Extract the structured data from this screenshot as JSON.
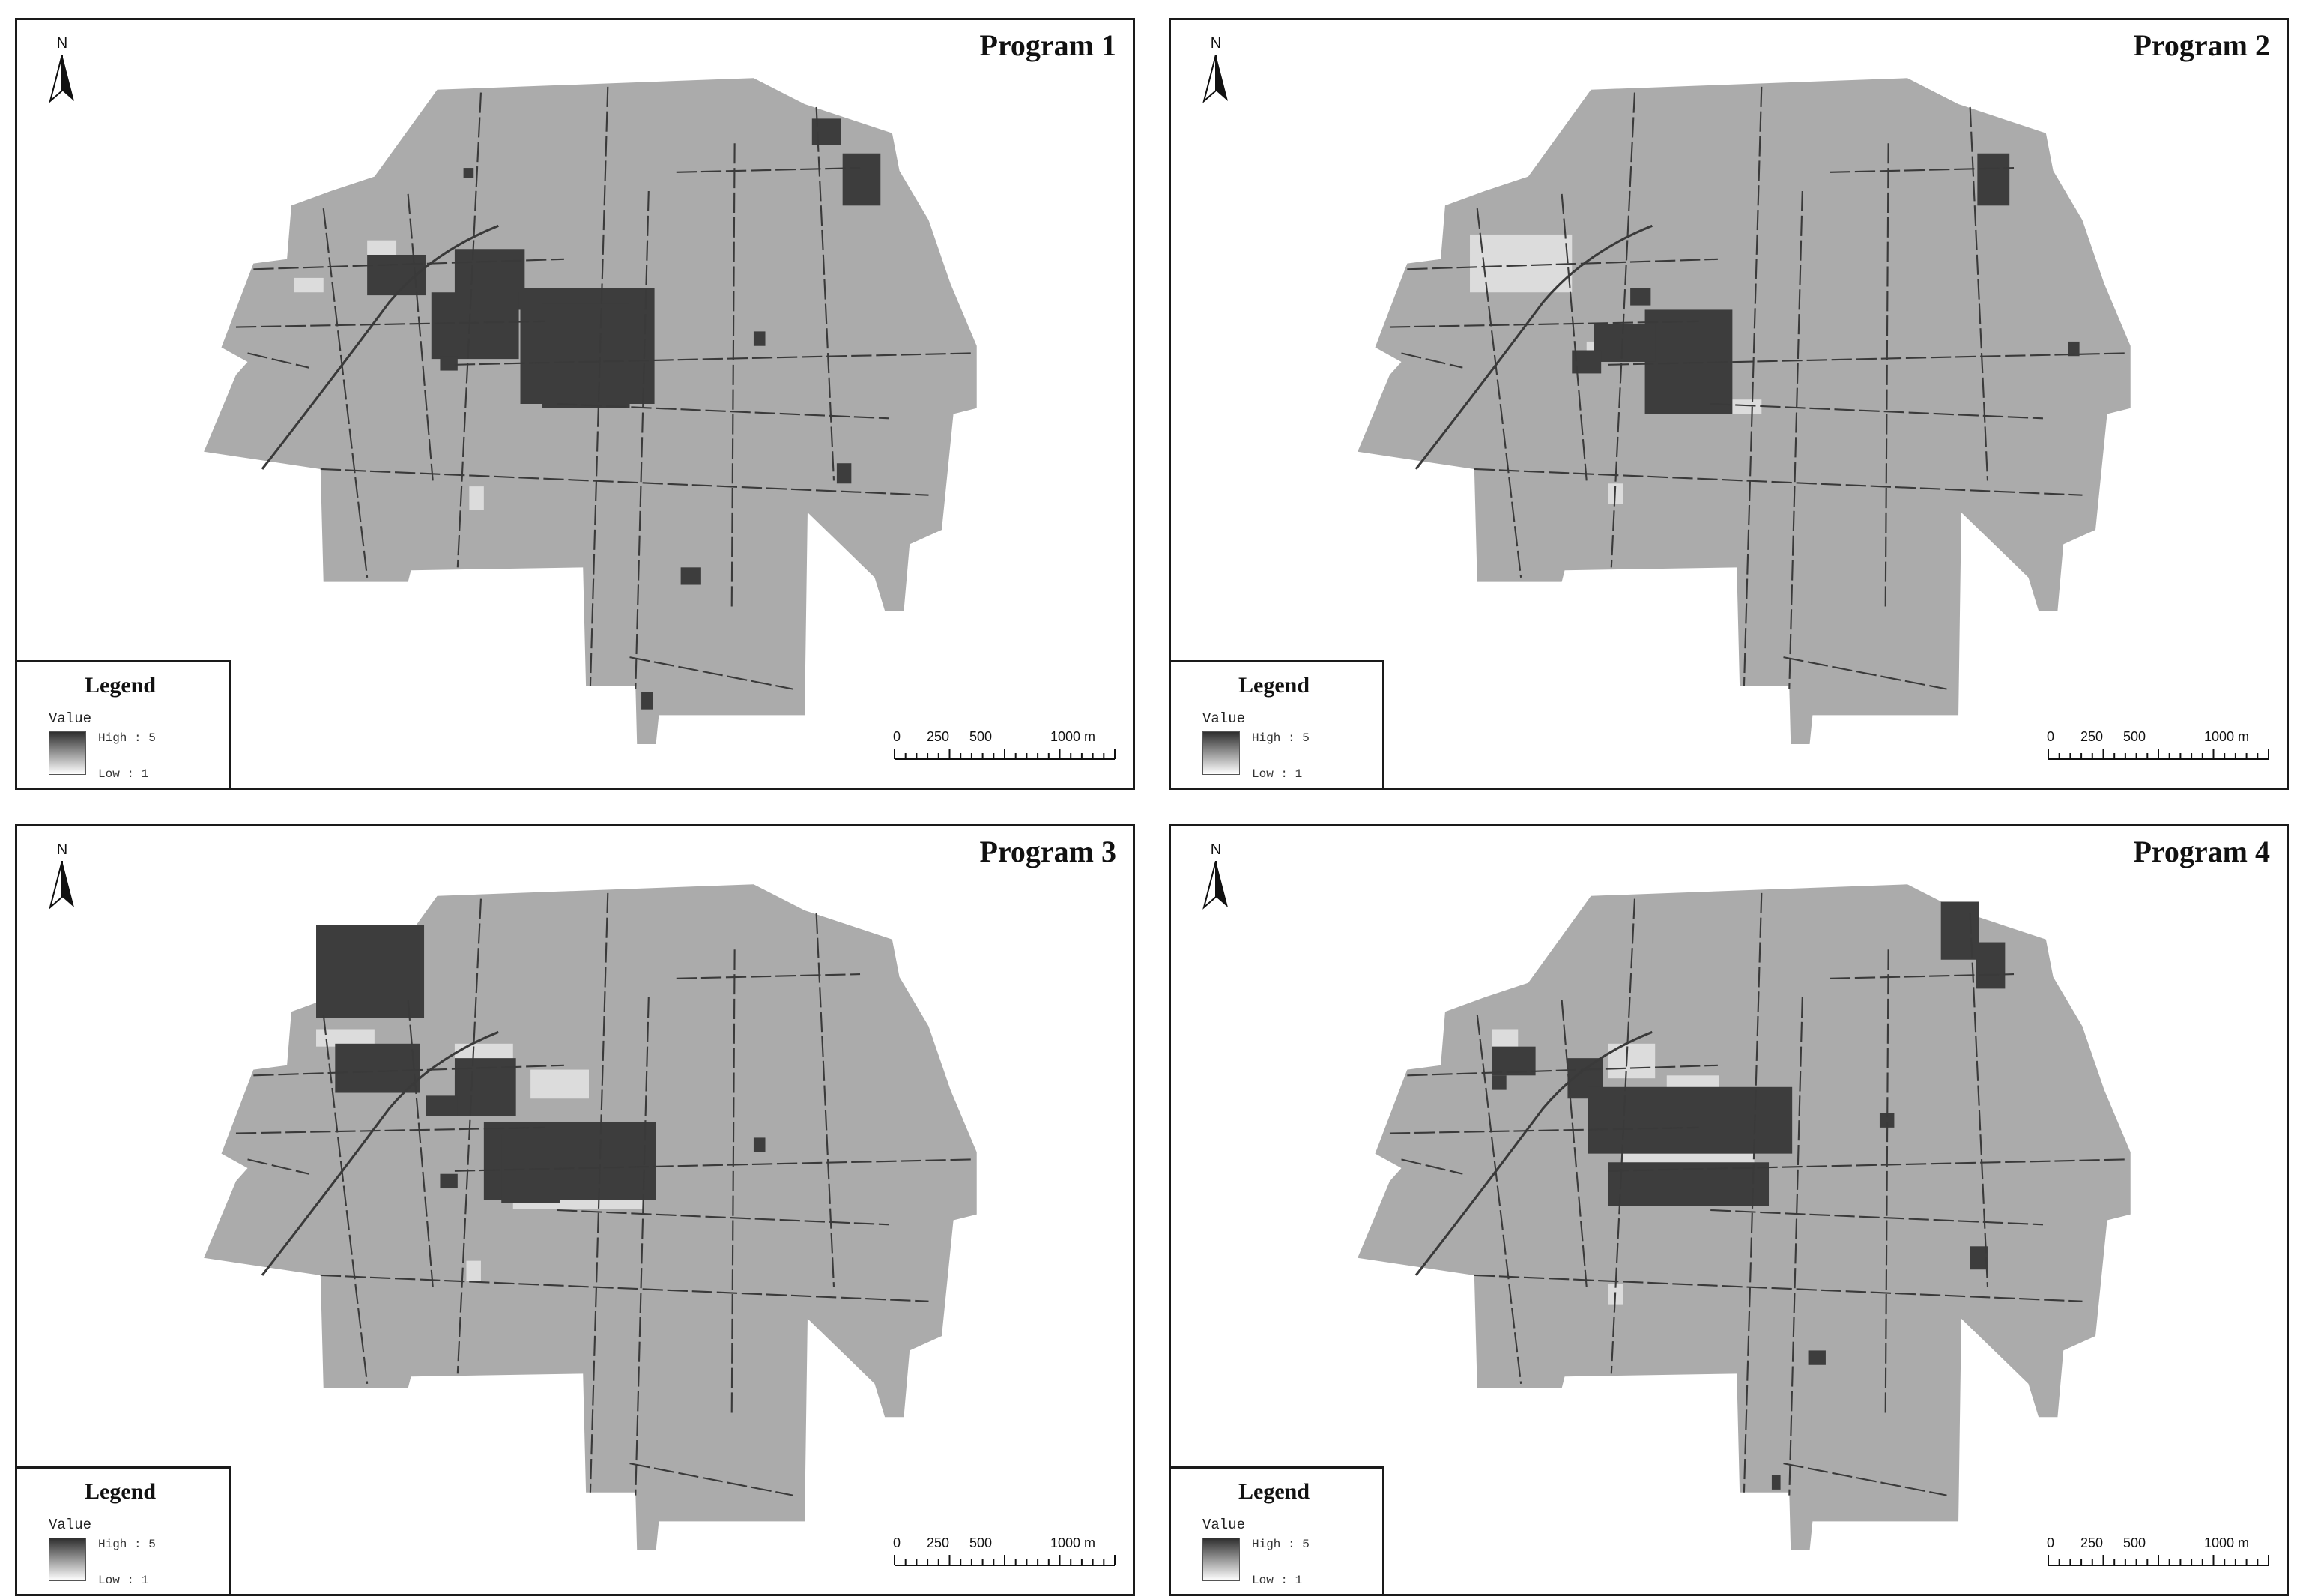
{
  "panels": [
    {
      "title": "Program 1",
      "variant": 1
    },
    {
      "title": "Program 2",
      "variant": 2
    },
    {
      "title": "Program 3",
      "variant": 3
    },
    {
      "title": "Program 4",
      "variant": 4
    }
  ],
  "north_label": "N",
  "legend": {
    "title": "Legend",
    "field": "Value",
    "high": "High : 5",
    "low": "Low : 1"
  },
  "scale": {
    "labels": [
      "0",
      "250",
      "500",
      "1000 m"
    ]
  },
  "colors": {
    "base": "#ababab",
    "road": "#3a3a3a",
    "high": "#3d3d3d",
    "low": "#dcdcdc",
    "frame": "#1a1a1a"
  }
}
